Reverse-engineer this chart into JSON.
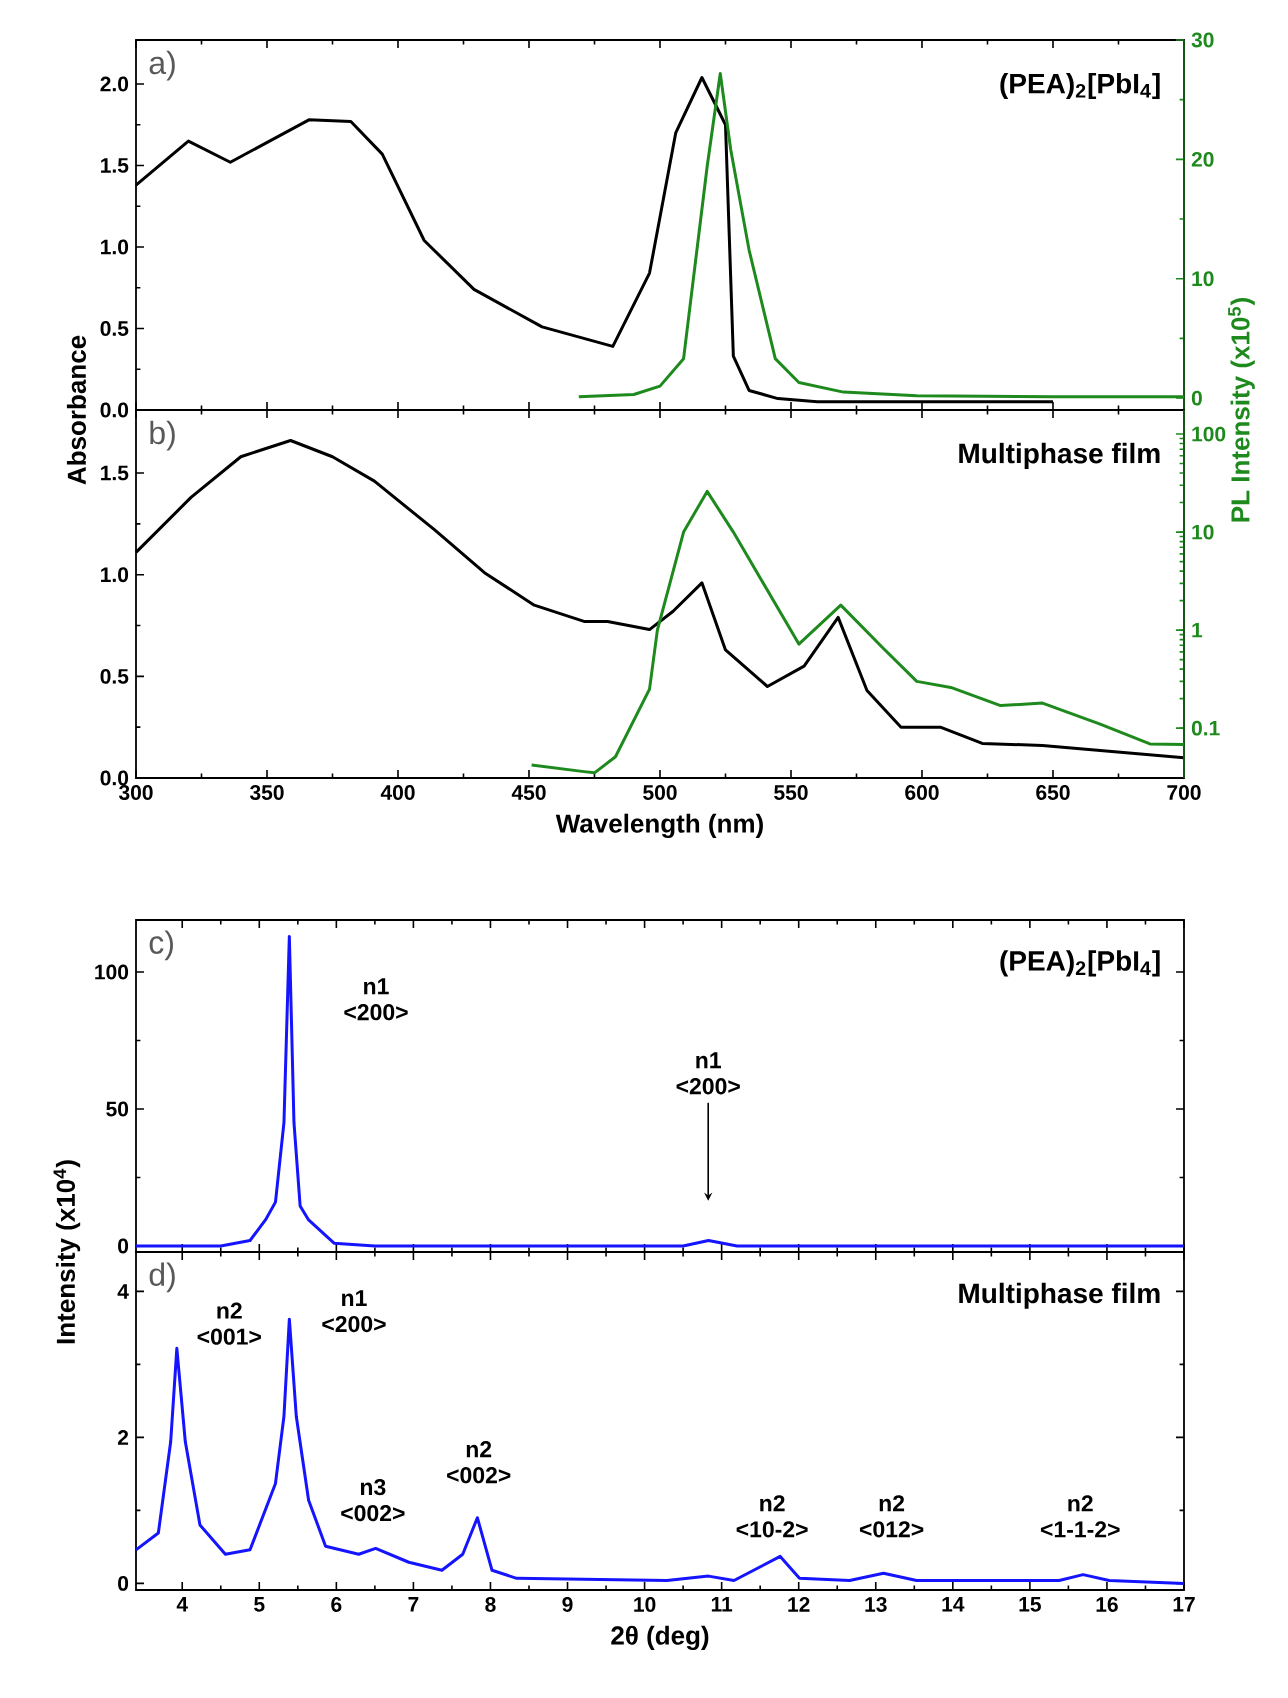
{
  "chart_data": [
    {
      "type": "line",
      "ylabel": "Absorbance",
      "y2label": "PL Intensity (x10$^{5}$)",
      "annotations": [
        "a)",
        "(PEA)$_{2}$[PbI$_{4}$]"
      ],
      "xlim": [
        300,
        700
      ],
      "xticks": [
        300,
        350,
        400,
        450,
        500,
        550,
        600,
        650,
        700
      ],
      "ylim": [
        0,
        2.27
      ],
      "yticks": [
        {
          "value": 0,
          "label": "0.0"
        },
        {
          "value": 0.5,
          "label": "0.5"
        },
        {
          "value": 1,
          "label": "1.0"
        },
        {
          "value": 1.5,
          "label": "1.5"
        },
        {
          "value": 2,
          "label": "2.0"
        }
      ],
      "y2lim": [
        -1,
        30
      ],
      "y2ticks": [
        0,
        10,
        20,
        30
      ],
      "tick_labels": "y",
      "series": [
        {
          "color": "#000000",
          "x": [
            300,
            320,
            336,
            366,
            382,
            394,
            410,
            429,
            455,
            482,
            496,
            506,
            516,
            525,
            528,
            534,
            545,
            560,
            600,
            650
          ],
          "values": [
            1.38,
            1.65,
            1.52,
            1.78,
            1.77,
            1.57,
            1.04,
            0.74,
            0.51,
            0.39,
            0.84,
            1.7,
            2.04,
            1.75,
            0.33,
            0.12,
            0.07,
            0.05,
            0.05,
            0.05
          ]
        },
        {
          "color": "#1e8a1e",
          "axis": "y2",
          "x": [
            469,
            490,
            500,
            509,
            518,
            523,
            527,
            534,
            544,
            553,
            570,
            598,
            650,
            700
          ],
          "values": [
            0.1,
            0.3,
            1.0,
            3.3,
            19.4,
            27.2,
            20.8,
            12.4,
            3.3,
            1.3,
            0.5,
            0.2,
            0.1,
            0.1
          ]
        }
      ]
    },
    {
      "type": "line",
      "xlabel": "Wavelength (nm)",
      "annotations": [
        "b)",
        "Multiphase film"
      ],
      "xlim": [
        300,
        700
      ],
      "xticks": [
        300,
        350,
        400,
        450,
        500,
        550,
        600,
        650,
        700
      ],
      "ylim": [
        0,
        1.81
      ],
      "yticks": [
        {
          "value": 0,
          "label": "0.0"
        },
        {
          "value": 0.5,
          "label": "0.5"
        },
        {
          "value": 1,
          "label": "1.0"
        },
        {
          "value": 1.5,
          "label": "1.5"
        }
      ],
      "y2lim": [
        0.031,
        176
      ],
      "y2ticks": [
        0.1,
        1,
        10,
        100
      ],
      "log": "y2",
      "series": [
        {
          "color": "#000000",
          "x": [
            300,
            321,
            340,
            359,
            375,
            391,
            414,
            433,
            452,
            471,
            480,
            496,
            505,
            516,
            525,
            541,
            555,
            568,
            579,
            592,
            607,
            623,
            646,
            700
          ],
          "values": [
            1.11,
            1.38,
            1.58,
            1.66,
            1.58,
            1.46,
            1.22,
            1.01,
            0.85,
            0.77,
            0.77,
            0.73,
            0.82,
            0.96,
            0.63,
            0.45,
            0.55,
            0.79,
            0.43,
            0.25,
            0.25,
            0.17,
            0.16,
            0.1
          ]
        },
        {
          "color": "#1e8a1e",
          "axis": "y2",
          "x": [
            451,
            471,
            475,
            483,
            496,
            499,
            509,
            518,
            528,
            553,
            569,
            585,
            598,
            611,
            630,
            646,
            668,
            687,
            700
          ],
          "values": [
            0.042,
            0.036,
            0.035,
            0.051,
            0.25,
            1,
            10,
            26,
            10,
            0.72,
            1.8,
            0.66,
            0.3,
            0.26,
            0.17,
            0.18,
            0.11,
            0.069,
            0.068
          ]
        }
      ]
    },
    {
      "type": "line",
      "ylabel": "Intensity (x10$^{4}$)",
      "annotations": [
        "c)",
        "(PEA)$_{2}$[PbI$_{4}$]",
        "n1 <200>",
        "n1 <200>"
      ],
      "xlim": [
        3.4,
        17
      ],
      "xticks": [
        4,
        5,
        6,
        7,
        8,
        9,
        10,
        11,
        12,
        13,
        14,
        15,
        16,
        17
      ],
      "ylim": [
        -2.2,
        119
      ],
      "yticks": [
        0,
        50,
        100
      ],
      "tick_labels": "y",
      "series": [
        {
          "color": "#1414ff",
          "x": [
            3.4,
            4.5,
            4.88,
            5.08,
            5.21,
            5.32,
            5.39,
            5.45,
            5.53,
            5.64,
            5.97,
            6.5,
            10.5,
            10.83,
            11.2,
            17
          ],
          "values": [
            0,
            0,
            2,
            9.5,
            16,
            45,
            113,
            45,
            14.6,
            9.5,
            1,
            0,
            0,
            2,
            0,
            0
          ]
        }
      ]
    },
    {
      "type": "line",
      "xlabel": "2θ (deg)",
      "annotations": [
        "d)",
        "Multiphase film",
        "n2 <001>",
        "n1 <200>",
        "n3 <002>",
        "n2 <002>",
        "n2 <10-2>",
        "n2 <012>",
        "n2 <1-1-2>"
      ],
      "xlim": [
        3.4,
        17
      ],
      "xticks": [
        4,
        5,
        6,
        7,
        8,
        9,
        10,
        11,
        12,
        13,
        14,
        15,
        16,
        17
      ],
      "ylim": [
        -0.09,
        4.54
      ],
      "yticks": [
        0,
        2,
        4
      ],
      "series": [
        {
          "color": "#1414ff",
          "x": [
            3.4,
            3.69,
            3.85,
            3.93,
            4.04,
            4.23,
            4.56,
            4.88,
            5.21,
            5.32,
            5.39,
            5.48,
            5.64,
            5.86,
            6.29,
            6.51,
            6.94,
            7.37,
            7.64,
            7.83,
            8.02,
            8.34,
            10.29,
            10.83,
            11.16,
            11.76,
            12.01,
            12.66,
            13.1,
            13.53,
            15.38,
            15.69,
            16.03,
            17
          ],
          "values": [
            0.46,
            0.69,
            1.94,
            3.22,
            1.94,
            0.8,
            0.4,
            0.46,
            1.37,
            2.29,
            3.62,
            2.29,
            1.14,
            0.51,
            0.4,
            0.48,
            0.29,
            0.18,
            0.4,
            0.9,
            0.18,
            0.07,
            0.04,
            0.1,
            0.04,
            0.37,
            0.07,
            0.04,
            0.14,
            0.04,
            0.04,
            0.12,
            0.04,
            0.0
          ]
        }
      ]
    }
  ]
}
